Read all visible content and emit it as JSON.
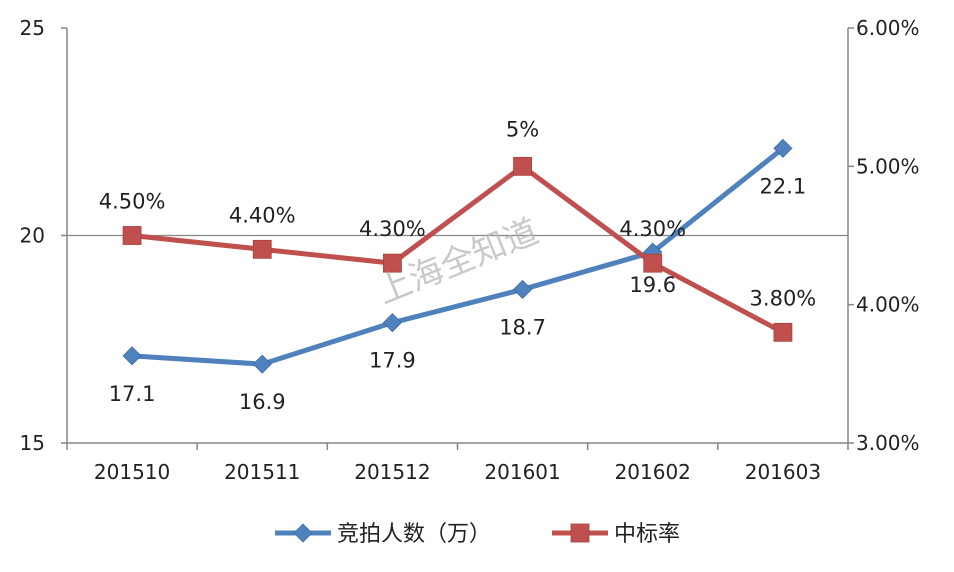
{
  "chart_data": {
    "type": "line",
    "categories": [
      "201510",
      "201511",
      "201512",
      "201601",
      "201602",
      "201603"
    ],
    "series": [
      {
        "name": "竞拍人数（万）",
        "axis": "left",
        "values": [
          17.1,
          16.9,
          17.9,
          18.7,
          19.6,
          22.1
        ],
        "labels": [
          "17.1",
          "16.9",
          "17.9",
          "18.7",
          "19.6",
          "22.1"
        ],
        "color": "#4f81bd",
        "marker": "diamond"
      },
      {
        "name": "中标率",
        "axis": "right",
        "values": [
          4.5,
          4.4,
          4.3,
          5.0,
          4.3,
          3.8
        ],
        "labels": [
          "4.50%",
          "4.40%",
          "4.30%",
          "5%",
          "4.30%",
          "3.80%"
        ],
        "color": "#c0504d",
        "marker": "square"
      }
    ],
    "y_left": {
      "range": [
        15,
        25
      ],
      "ticks": [
        "15",
        "20",
        "25"
      ]
    },
    "y_right": {
      "range": [
        3.0,
        6.0
      ],
      "ticks": [
        "3.00%",
        "4.00%",
        "5.00%",
        "6.00%"
      ]
    },
    "gridlines": [
      20
    ],
    "legend_position": "bottom",
    "watermark": "上海全知道"
  }
}
